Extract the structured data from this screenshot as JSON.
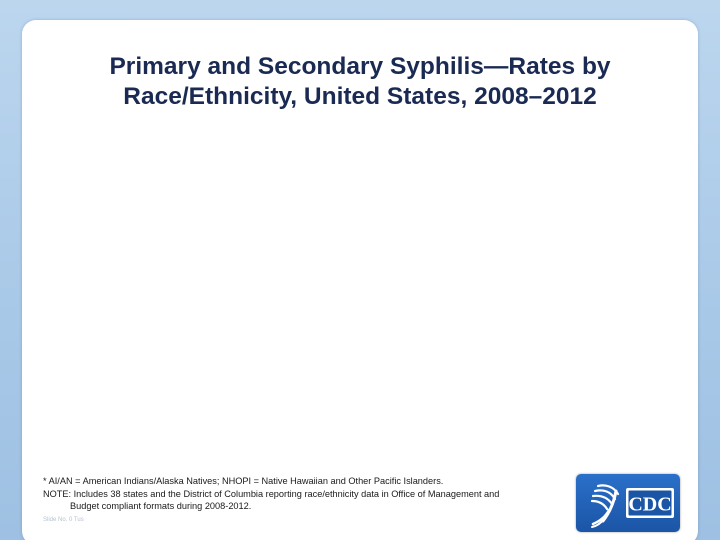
{
  "slide": {
    "title_line1": "Primary and Secondary Syphilis—Rates by",
    "title_line2": "Race/Ethnicity, United States,  2008–2012",
    "footnote_abbrev": "* AI/AN = American Indians/Alaska Natives; NHOPI = Native Hawaiian and Other Pacific Islanders.",
    "footnote_note_line1": "NOTE: Includes 38 states and the District of Columbia reporting race/ethnicity data in Office of Management and",
    "footnote_note_line2": "Budget compliant formats during 2008-2012.",
    "slide_number": "Slide No. 0 Tus"
  },
  "logo": {
    "text": "CDC",
    "icon": "hhs-eagle-icon"
  },
  "colors": {
    "background": "#a9c9e8",
    "panel": "#ffffff",
    "title": "#1a2a52",
    "logo_blue": "#1b55a6"
  }
}
